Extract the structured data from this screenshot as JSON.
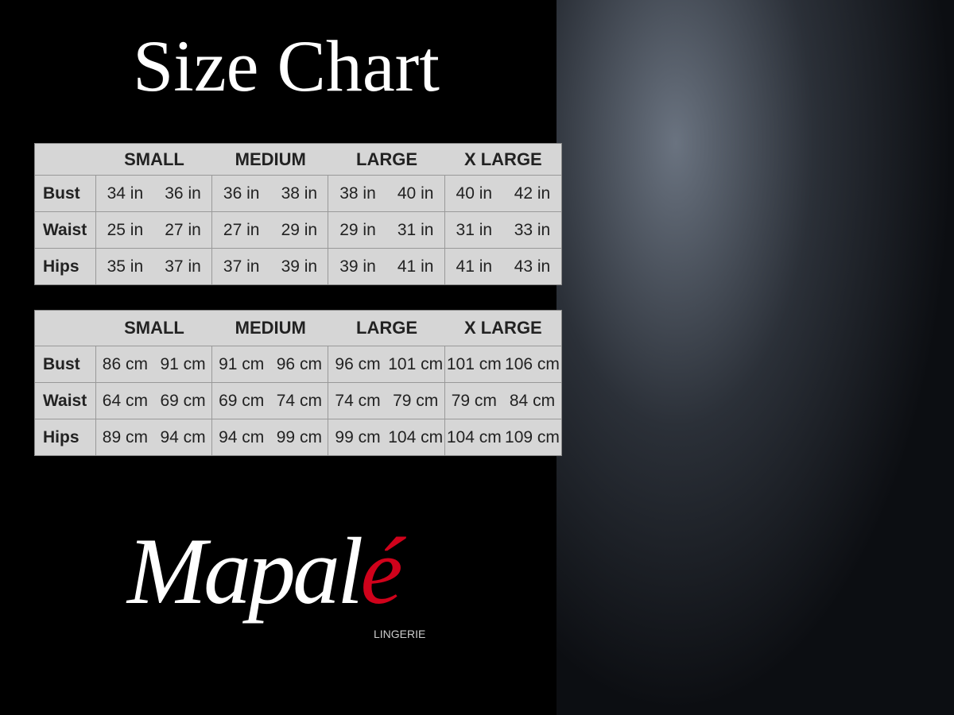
{
  "title": "Size Chart",
  "tables": [
    {
      "header": [
        "SMALL",
        "MEDIUM",
        "LARGE",
        "X LARGE"
      ],
      "rows": [
        {
          "label": "Bust",
          "cells": [
            "34 in",
            "36 in",
            "36 in",
            "38 in",
            "38 in",
            "40 in",
            "40 in",
            "42 in"
          ]
        },
        {
          "label": "Waist",
          "cells": [
            "25 in",
            "27 in",
            "27 in",
            "29 in",
            "29 in",
            "31 in",
            "31 in",
            "33 in"
          ]
        },
        {
          "label": "Hips",
          "cells": [
            "35 in",
            "37 in",
            "37 in",
            "39 in",
            "39 in",
            "41 in",
            "41 in",
            "43 in"
          ]
        }
      ]
    },
    {
      "header": [
        "SMALL",
        "MEDIUM",
        "LARGE",
        "X LARGE"
      ],
      "rows": [
        {
          "label": "Bust",
          "cells": [
            "86 cm",
            "91 cm",
            "91 cm",
            "96 cm",
            "96 cm",
            "101 cm",
            "101 cm",
            "106 cm"
          ]
        },
        {
          "label": "Waist",
          "cells": [
            "64 cm",
            "69 cm",
            "69 cm",
            "74 cm",
            "74 cm",
            "79 cm",
            "79 cm",
            "84 cm"
          ]
        },
        {
          "label": "Hips",
          "cells": [
            "89 cm",
            "94 cm",
            "94 cm",
            "99 cm",
            "99 cm",
            "104 cm",
            "104 cm",
            "109 cm"
          ]
        }
      ]
    }
  ],
  "logo": {
    "main": "Mapal",
    "accent": "é",
    "sub": "LINGERIE"
  }
}
